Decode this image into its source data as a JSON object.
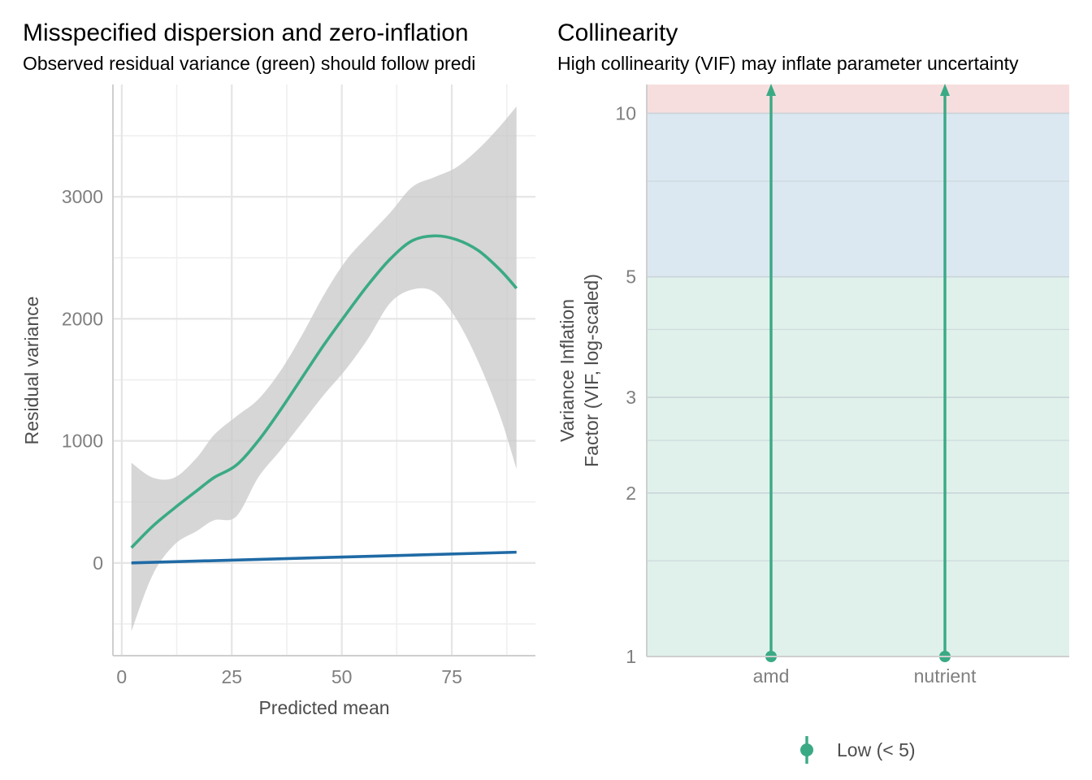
{
  "chart_data": [
    {
      "type": "line",
      "title": "Misspecified dispersion and zero-inflation",
      "subtitle": "Observed residual variance (green) should follow predi",
      "xlabel": "Predicted mean",
      "ylabel": "Residual variance",
      "xlim": [
        -2,
        94
      ],
      "ylim": [
        -760,
        3920
      ],
      "x_ticks": [
        0,
        25,
        50,
        75
      ],
      "y_ticks": [
        0,
        1000,
        2000,
        3000
      ],
      "grid": true,
      "colors": {
        "observed": "#3aaa85",
        "predicted": "#1f6aa5",
        "band": "#c8c8c8"
      },
      "series": [
        {
          "key": "observed",
          "x": [
            2.2,
            7,
            12,
            17,
            21,
            26,
            31,
            36,
            41,
            46,
            51,
            56,
            61,
            66,
            71,
            76,
            81,
            86,
            89.7
          ],
          "values": [
            125,
            300,
            450,
            590,
            700,
            800,
            1000,
            1250,
            1520,
            1790,
            2040,
            2280,
            2490,
            2640,
            2680,
            2650,
            2560,
            2400,
            2250
          ],
          "lower": [
            -560,
            -100,
            150,
            260,
            350,
            380,
            700,
            920,
            1150,
            1380,
            1590,
            1840,
            2130,
            2240,
            2220,
            2000,
            1650,
            1200,
            770
          ],
          "upper": [
            820,
            700,
            700,
            860,
            1050,
            1200,
            1340,
            1570,
            1870,
            2200,
            2480,
            2680,
            2870,
            3080,
            3160,
            3240,
            3390,
            3580,
            3740
          ]
        },
        {
          "key": "predicted",
          "x": [
            2.2,
            89.7
          ],
          "values": [
            0,
            88
          ]
        }
      ]
    },
    {
      "type": "scatter",
      "title": "Collinearity",
      "subtitle": "High collinearity (VIF) may inflate parameter uncertainty",
      "xlabel": "",
      "ylabel_lines": [
        "Variance Inflation",
        "Factor (VIF, log-scaled)"
      ],
      "y_scale": "log",
      "ylim": [
        1,
        11.3
      ],
      "y_ticks": [
        1,
        2,
        3,
        5,
        10
      ],
      "categories": [
        "amd",
        "nutrient"
      ],
      "values": [
        1.0,
        1.0
      ],
      "interval_upper": [
        11.3,
        11.3
      ],
      "zones": [
        {
          "from": 1,
          "to": 5,
          "color": "#e0f1eb"
        },
        {
          "from": 5,
          "to": 10,
          "color": "#dce8f1"
        },
        {
          "from": 10,
          "to": 11.3,
          "color": "#f7dede"
        }
      ],
      "point_color": "#3aaa85",
      "legend": {
        "position": "bottom",
        "items": [
          {
            "label": "Low (< 5)",
            "color": "#3aaa85"
          }
        ]
      }
    }
  ]
}
